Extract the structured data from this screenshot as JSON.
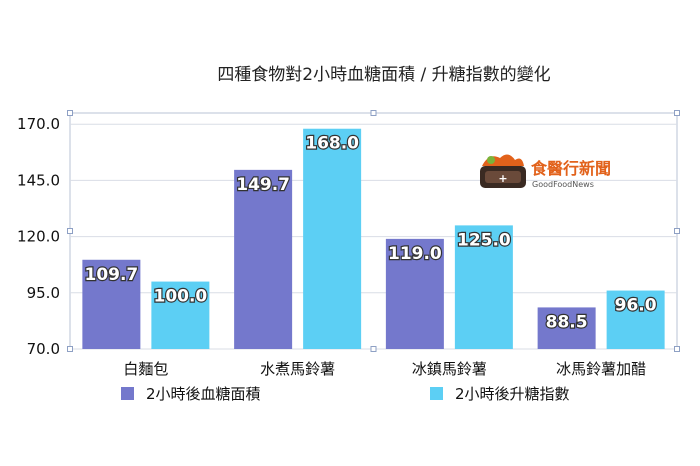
{
  "chart_data": {
    "type": "bar",
    "title": "四種食物對2小時血糖面積 / 升糖指數的變化",
    "categories": [
      "白麵包",
      "水煮馬鈴薯",
      "冰鎮馬鈴薯",
      "冰馬鈴薯加醋"
    ],
    "series": [
      {
        "name": "2小時後血糖面積",
        "values": [
          109.7,
          149.7,
          119.0,
          88.5
        ],
        "labels": [
          "109.7",
          "149.7",
          "119.0",
          "88.5"
        ],
        "color": "#7478cc"
      },
      {
        "name": "2小時後升糖指數",
        "values": [
          100.0,
          168.0,
          125.0,
          96.0
        ],
        "labels": [
          "100.0",
          "168.0",
          "125.0",
          "96.0"
        ],
        "color": "#5ccff4"
      }
    ],
    "ylim": [
      70,
      175
    ],
    "yticks": [
      "70.0",
      "95.0",
      "120.0",
      "145.0",
      "170.0"
    ],
    "grid": true,
    "legend": "bottom"
  },
  "logo": {
    "name_cn": "食醫行新聞",
    "name_en": "GoodFoodNews"
  }
}
